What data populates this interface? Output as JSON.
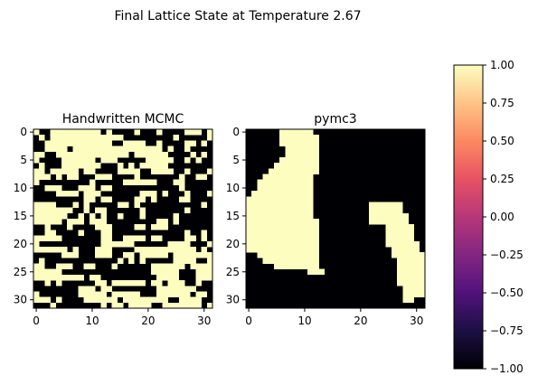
{
  "chart_data": {
    "type": "heatmap",
    "suptitle": "Final Lattice State at Temperature 2.67",
    "colors": {
      "spin_down": "#000004",
      "spin_up": "#fcfdbf"
    },
    "panels": [
      {
        "title": "Handwritten MCMC",
        "grid_size": 32,
        "xticks": [
          "0",
          "10",
          "20",
          "30"
        ],
        "yticks": [
          "0",
          "5",
          "10",
          "15",
          "20",
          "25",
          "30"
        ],
        "rows": [
          "10011111111101000010001000011101",
          "01011111111111110000000001000001",
          "00111111111111001111001000011010",
          "00111101111111111111111010010000",
          "11001111111111111011111100001010",
          "10000111111011100000111110010100",
          "01000111111100010101111100000000",
          "11011111011000011110011110010001",
          "11101011000111000010000000100110",
          "10000000001000001111110001100000",
          "00111000111011000000000000100000",
          "00001111011100000001110100010001",
          "00000000011011000011010000110000",
          "11110001010000011010000000000010",
          "11111110010110000001000000010000",
          "11111100101010010001000001000000",
          "11111011101110000000001101000000",
          "00100010000111000011011100000000",
          "00110000100011000000000000010010",
          "11111000000011001111011000011010",
          "10000000000011111100000011110001",
          "11111101000111000011111111111010",
          "00000111000111001101111101111111",
          "01000000000000010101000001111001",
          "11001110011000100000011111101111",
          "11111000000000000000011111000111",
          "11111111101100000000001111000111",
          "00101000000110111111011011100100",
          "00000000111011000000001111111000",
          "10000000111110111110001111110110",
          "11101000011111101111111100111100",
          "00010000000010110111100111111101"
        ]
      },
      {
        "title": "pymc3",
        "grid_size": 32,
        "xticks": [
          "0",
          "10",
          "20",
          "30"
        ],
        "yticks": [
          "0",
          "5",
          "10",
          "15",
          "20",
          "25",
          "30"
        ],
        "rows": [
          "00000011111100000000000000000000",
          "00000011111110000000000000000000",
          "00000011111110000000000000000000",
          "00000001111110000000000000000000",
          "00000001111110000000000000000000",
          "00000011111110000000000000000000",
          "00000111111110000000000000000000",
          "00001111111110000000000000000000",
          "00011111111100000000000000000000",
          "00111111111100000000000000000000",
          "00111111111100000000000000000000",
          "01111111111100000000000000000000",
          "11111111111100000000000000000000",
          "11111111111100000000001111110000",
          "11111111111100000000001111110000",
          "11111111111100000000001111111000",
          "11111111111110000000001111111000",
          "11111111111110000000000001111100",
          "11111111111110000000000001111100",
          "11111111111110000000000001111100",
          "11111111111110000000000001111110",
          "11111111111110000000000000111110",
          "00111111111110000000000000111111",
          "00011111111110000000000000011111",
          "00000111111110000000000000011111",
          "00000000000111000000000000011111",
          "00000000000000000000000000011111",
          "00000000000000000000000000011111",
          "00000000000000000000000000001111",
          "00000000000000000000000000001111",
          "00000000000000000000000000001100",
          "00000000000000000000000000000000"
        ]
      }
    ],
    "colorbar": {
      "cmap": "magma",
      "range": [
        -1.0,
        1.0
      ],
      "ticks": [
        "1.00",
        "0.75",
        "0.50",
        "0.25",
        "0.00",
        "−0.25",
        "−0.50",
        "−0.75",
        "−1.00"
      ],
      "stops": [
        "#000004",
        "#1c1044",
        "#51127c",
        "#832681",
        "#b73779",
        "#e75263",
        "#fc8961",
        "#fec488",
        "#fcfdbf"
      ]
    }
  }
}
